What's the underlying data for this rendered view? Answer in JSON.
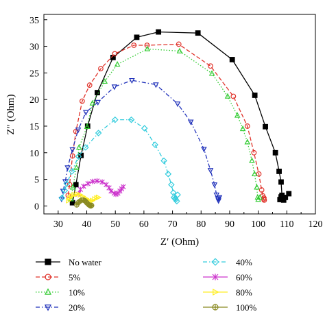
{
  "chart_data": {
    "type": "scatter",
    "xlabel": "Z′ (Ohm)",
    "ylabel": "Z″ (Ohm)",
    "xlim": [
      25,
      120
    ],
    "ylim": [
      -1.5,
      36
    ],
    "xticks": [
      30,
      40,
      50,
      60,
      70,
      80,
      90,
      100,
      110,
      120
    ],
    "yticks": [
      0,
      5,
      10,
      15,
      20,
      25,
      30,
      35
    ],
    "grid": false,
    "legend": "below-plot",
    "series": [
      {
        "name": "No water",
        "color": "#000000",
        "marker": "square",
        "filled": true,
        "dash": "solid",
        "x": [
          35.0,
          36.2,
          38.0,
          40.3,
          43.7,
          49.2,
          57.5,
          65.1,
          78.9,
          90.9,
          98.8,
          102.5,
          106.0,
          107.3,
          108.0,
          108.3,
          108.1,
          107.6,
          108.0,
          108.9,
          109.5,
          110.7
        ],
        "y": [
          0.6,
          4.0,
          9.5,
          15.0,
          21.3,
          27.9,
          31.7,
          32.7,
          32.5,
          27.5,
          20.8,
          14.9,
          10.0,
          6.5,
          4.5,
          2.0,
          1.5,
          1.2,
          1.7,
          1.1,
          1.6,
          2.3
        ]
      },
      {
        "name": "5%",
        "color": "#e0332b",
        "marker": "circle",
        "filled": false,
        "dash": "dash",
        "x": [
          33.5,
          34.0,
          35.0,
          36.2,
          38.4,
          41.0,
          44.9,
          49.8,
          56.5,
          61.1,
          72.2,
          83.3,
          91.3,
          96.2,
          98.5,
          100.2,
          101.2,
          101.6,
          101.9,
          102.1,
          102.0
        ],
        "y": [
          2.0,
          4.0,
          9.4,
          14.0,
          19.7,
          22.7,
          25.8,
          28.6,
          30.2,
          30.2,
          30.4,
          26.3,
          20.6,
          15.0,
          10.0,
          6.0,
          3.0,
          1.9,
          1.3,
          1.1,
          1.5
        ]
      },
      {
        "name": "10%",
        "color": "#33cc33",
        "marker": "triangle-up",
        "filled": false,
        "dash": "dot",
        "x": [
          34.5,
          35.1,
          36.4,
          37.3,
          40.1,
          42.0,
          46.3,
          50.7,
          61.2,
          72.5,
          83.8,
          89.3,
          92.7,
          94.6,
          96.2,
          97.8,
          98.7,
          99.5,
          99.8,
          100.0,
          100.6
        ],
        "y": [
          1.3,
          3.5,
          7.2,
          11.0,
          14.9,
          19.3,
          23.4,
          26.6,
          29.5,
          29.1,
          24.9,
          20.6,
          17.0,
          14.5,
          12.0,
          8.5,
          6.0,
          3.5,
          1.6,
          1.2,
          1.6
        ]
      },
      {
        "name": "20%",
        "color": "#2233bb",
        "marker": "triangle-down",
        "filled": false,
        "dash": "dashdot",
        "x": [
          31.2,
          31.7,
          32.5,
          33.3,
          35.0,
          37.0,
          39.7,
          43.9,
          49.7,
          55.8,
          64.2,
          71.8,
          76.4,
          81.0,
          83.3,
          84.7,
          85.4,
          85.9,
          86.1,
          86.0,
          86.4
        ],
        "y": [
          1.3,
          2.8,
          4.6,
          7.2,
          10.6,
          14.3,
          17.6,
          19.5,
          22.4,
          23.6,
          22.8,
          19.2,
          15.8,
          10.7,
          6.7,
          4.0,
          2.1,
          1.4,
          1.0,
          1.3,
          1.6
        ]
      },
      {
        "name": "40%",
        "color": "#33ccdd",
        "marker": "diamond",
        "filled": false,
        "dash": "dashdot",
        "x": [
          31.3,
          32.3,
          33.0,
          34.8,
          37.1,
          39.6,
          44.1,
          49.9,
          55.6,
          60.2,
          63.9,
          67.0,
          68.5,
          69.6,
          70.3,
          70.9,
          71.5,
          71.1,
          70.5,
          71.8
        ],
        "y": [
          1.5,
          2.9,
          4.2,
          6.5,
          9.3,
          11.0,
          13.7,
          16.2,
          16.2,
          14.6,
          11.5,
          8.5,
          6.0,
          4.0,
          2.5,
          1.4,
          0.9,
          1.2,
          1.6,
          2.1
        ]
      },
      {
        "name": "60%",
        "color": "#cc33cc",
        "marker": "star",
        "filled": false,
        "dash": "solid",
        "x": [
          37.0,
          37.8,
          38.9,
          40.4,
          42.0,
          43.6,
          45.4,
          46.8,
          47.8,
          48.5,
          49.6,
          50.2,
          50.9,
          51.6,
          52.2,
          52.8
        ],
        "y": [
          2.2,
          3.1,
          3.7,
          4.2,
          4.6,
          4.7,
          4.5,
          4.0,
          3.4,
          2.8,
          2.4,
          2.2,
          2.4,
          2.8,
          3.2,
          3.6
        ]
      },
      {
        "name": "80%",
        "color": "#ffee22",
        "marker": "triangle-right",
        "filled": false,
        "dash": "solid",
        "x": [
          33.5,
          34.0,
          34.7,
          35.5,
          36.5,
          37.6,
          38.6,
          39.7,
          40.6,
          41.3,
          41.9,
          42.7,
          43.4,
          44.0
        ],
        "y": [
          1.0,
          1.5,
          1.9,
          2.1,
          2.2,
          2.1,
          1.8,
          1.4,
          1.1,
          0.9,
          1.0,
          1.3,
          1.5,
          1.6
        ]
      },
      {
        "name": "100%",
        "color": "#8a8a22",
        "marker": "circle-cross",
        "filled": false,
        "dash": "solid",
        "x": [
          36.5,
          37.0,
          37.6,
          38.2,
          38.8,
          39.3,
          39.7,
          40.0,
          40.4,
          40.8,
          41.1,
          41.4,
          41.7
        ],
        "y": [
          0.2,
          0.6,
          0.9,
          1.1,
          1.1,
          1.0,
          0.8,
          0.6,
          0.4,
          0.2,
          0.1,
          0.0,
          0.1
        ]
      }
    ]
  }
}
